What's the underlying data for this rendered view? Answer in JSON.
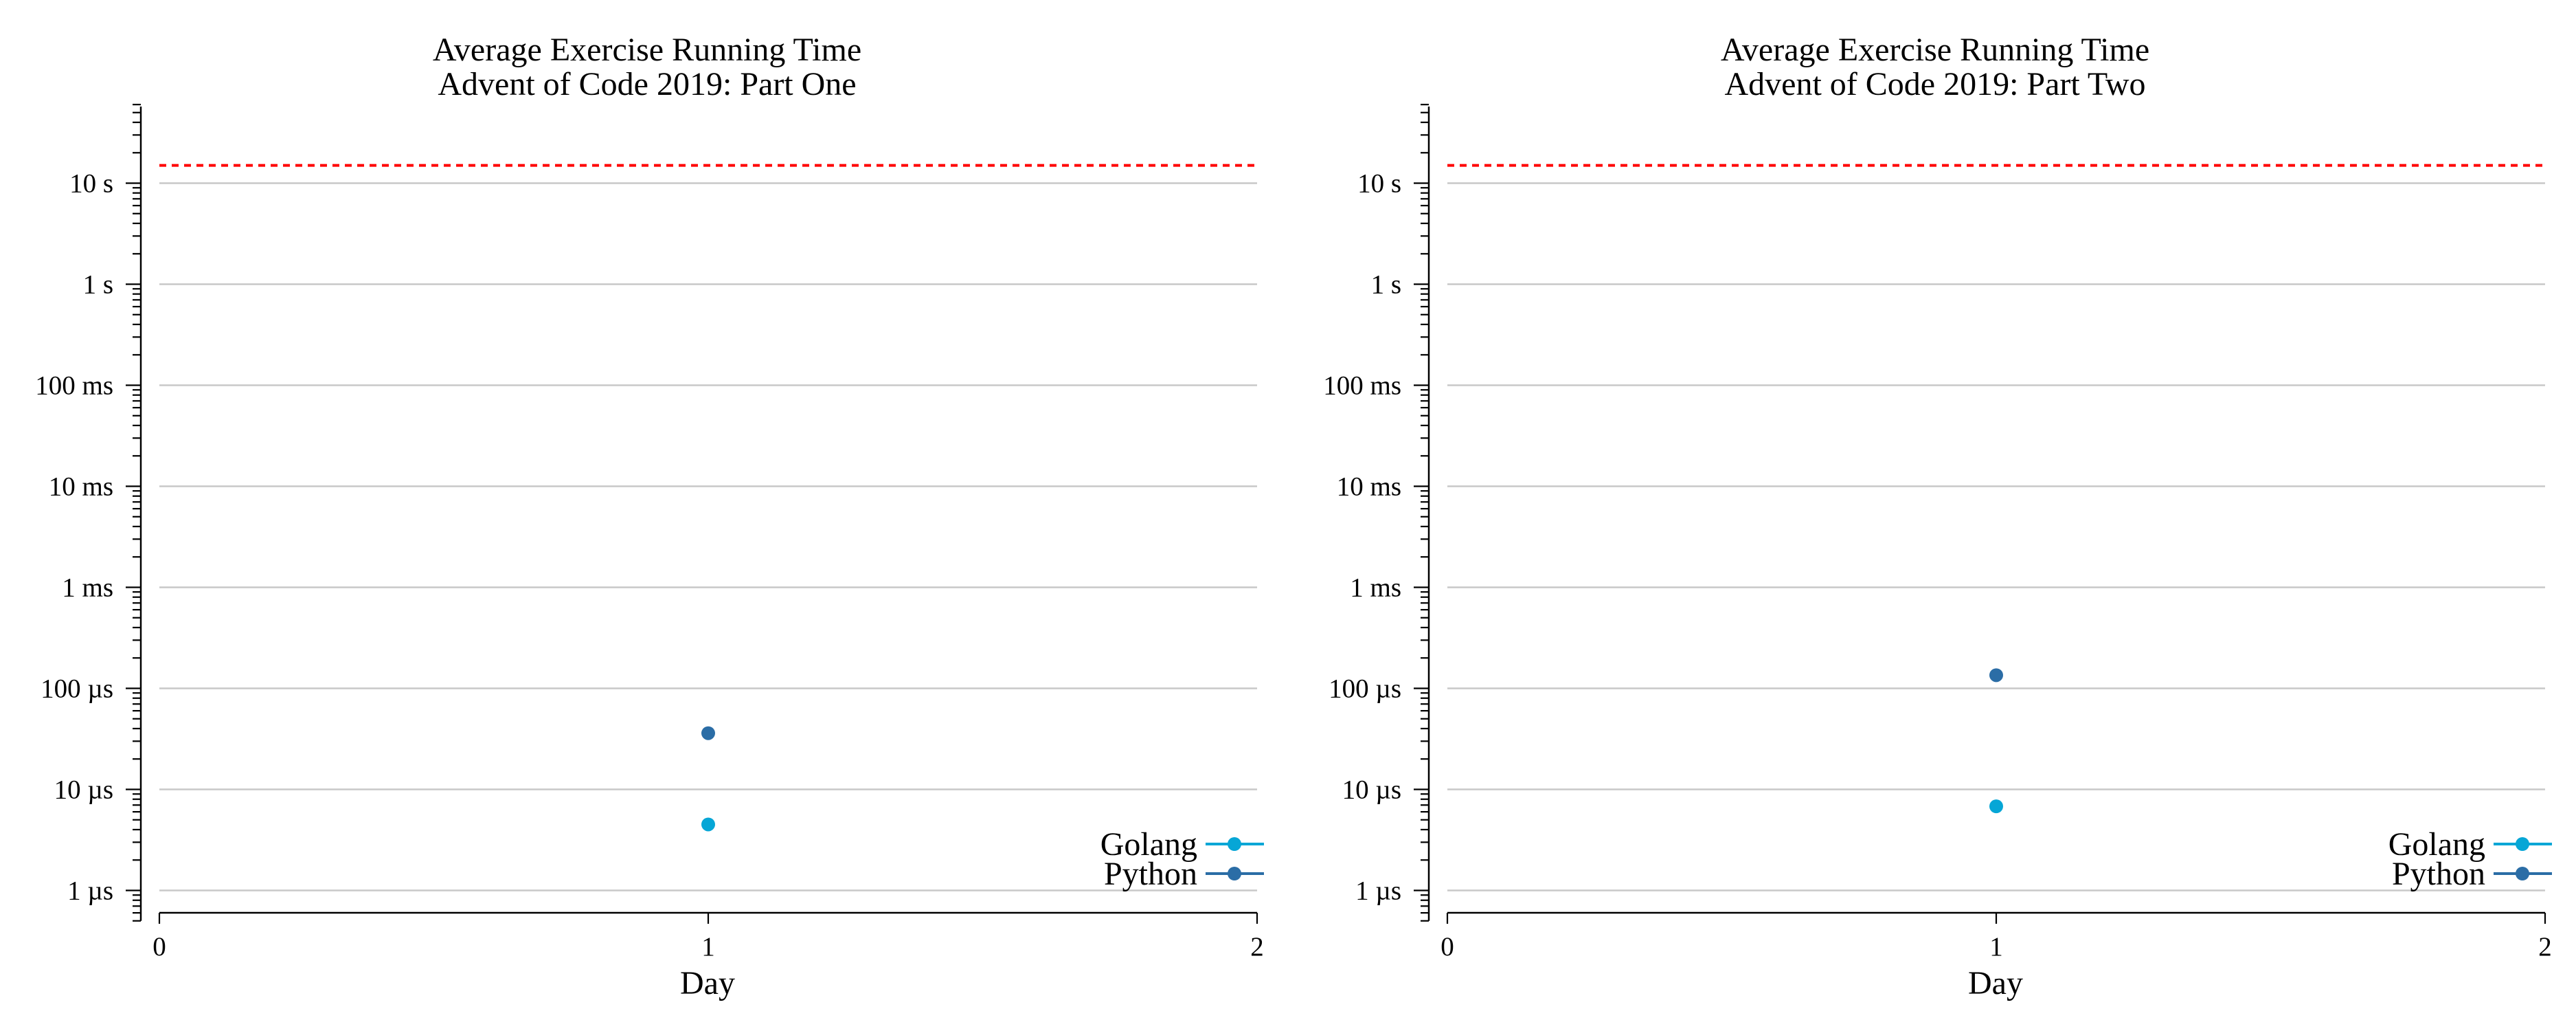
{
  "chart_data": [
    {
      "type": "scatter",
      "title": "Average Exercise Running Time",
      "subtitle": "Advent of Code 2019: Part One",
      "xlabel": "Day",
      "ylabel": "",
      "x_ticks": [
        "0",
        "1",
        "2"
      ],
      "xlim": [
        0,
        2
      ],
      "y_scale": "log",
      "y_unit": "seconds",
      "ylim": [
        5e-07,
        60
      ],
      "y_ticks": [
        {
          "value": 1e-06,
          "label": "1 µs"
        },
        {
          "value": 1e-05,
          "label": "10 µs"
        },
        {
          "value": 0.0001,
          "label": "100 µs"
        },
        {
          "value": 0.001,
          "label": "1 ms"
        },
        {
          "value": 0.01,
          "label": "10 ms"
        },
        {
          "value": 0.1,
          "label": "100 ms"
        },
        {
          "value": 1,
          "label": "1 s"
        },
        {
          "value": 10,
          "label": "10 s"
        }
      ],
      "threshold": {
        "value": 15,
        "color": "#ff0000",
        "style": "dashed"
      },
      "grid": true,
      "legend_position": "bottom-right",
      "series": [
        {
          "name": "Golang",
          "color": "#06a6d6",
          "points": [
            {
              "x": 1,
              "y": 4.5e-06
            }
          ]
        },
        {
          "name": "Python",
          "color": "#2b6da6",
          "points": [
            {
              "x": 1,
              "y": 3.6e-05
            }
          ]
        }
      ]
    },
    {
      "type": "scatter",
      "title": "Average Exercise Running Time",
      "subtitle": "Advent of Code 2019: Part Two",
      "xlabel": "Day",
      "ylabel": "",
      "x_ticks": [
        "0",
        "1",
        "2"
      ],
      "xlim": [
        0,
        2
      ],
      "y_scale": "log",
      "y_unit": "seconds",
      "ylim": [
        5e-07,
        60
      ],
      "y_ticks": [
        {
          "value": 1e-06,
          "label": "1 µs"
        },
        {
          "value": 1e-05,
          "label": "10 µs"
        },
        {
          "value": 0.0001,
          "label": "100 µs"
        },
        {
          "value": 0.001,
          "label": "1 ms"
        },
        {
          "value": 0.01,
          "label": "10 ms"
        },
        {
          "value": 0.1,
          "label": "100 ms"
        },
        {
          "value": 1,
          "label": "1 s"
        },
        {
          "value": 10,
          "label": "10 s"
        }
      ],
      "threshold": {
        "value": 15,
        "color": "#ff0000",
        "style": "dashed"
      },
      "grid": true,
      "legend_position": "bottom-right",
      "series": [
        {
          "name": "Golang",
          "color": "#06a6d6",
          "points": [
            {
              "x": 1,
              "y": 6.8e-06
            }
          ]
        },
        {
          "name": "Python",
          "color": "#2b6da6",
          "points": [
            {
              "x": 1,
              "y": 0.000135
            }
          ]
        }
      ]
    }
  ]
}
